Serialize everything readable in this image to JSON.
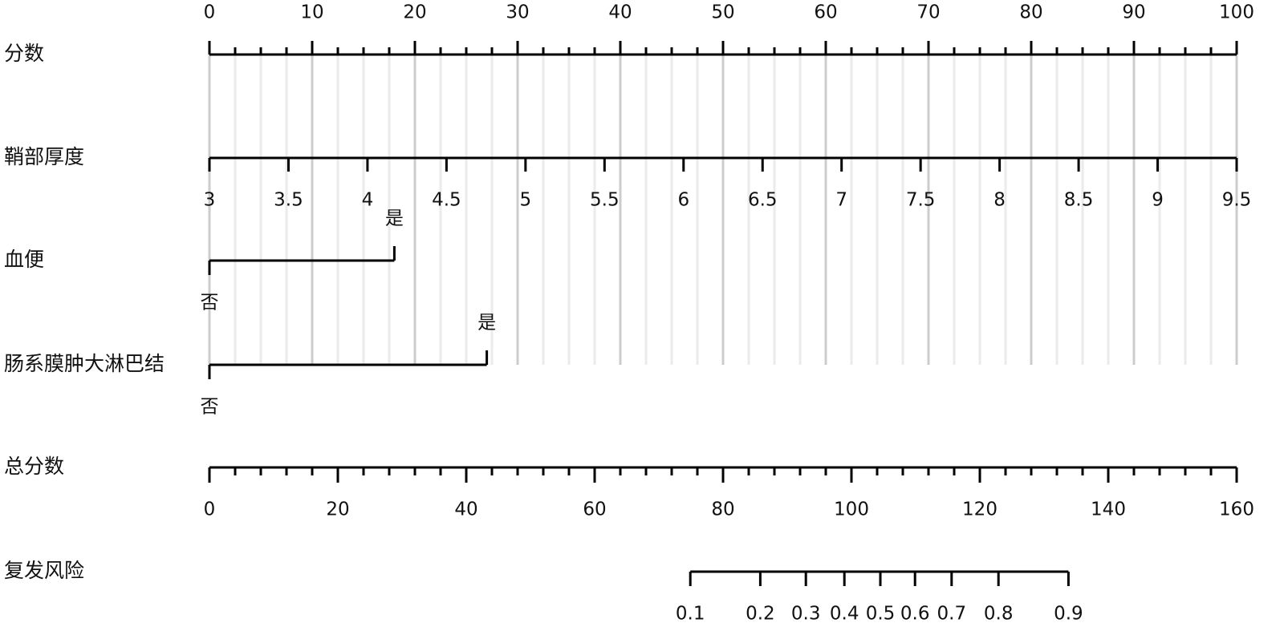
{
  "chart_data": {
    "type": "nomogram",
    "points": {
      "label": "分数",
      "lim": [
        0,
        100
      ],
      "ticks": [
        0,
        10,
        20,
        30,
        40,
        50,
        60,
        70,
        80,
        90,
        100
      ],
      "minor_ticks": [
        2.5,
        5,
        7.5,
        12.5,
        15,
        17.5,
        22.5,
        25,
        27.5,
        32.5,
        35,
        37.5,
        42.5,
        45,
        47.5,
        52.5,
        55,
        57.5,
        62.5,
        65,
        67.5,
        72.5,
        75,
        77.5,
        82.5,
        85,
        87.5,
        92.5,
        95,
        97.5
      ]
    },
    "variables": [
      {
        "label": "鞘部厚度",
        "type": "continuous",
        "range": [
          3,
          9.5
        ],
        "points": [
          0,
          100
        ],
        "ticks": [
          3,
          3.5,
          4,
          4.5,
          5,
          5.5,
          6,
          6.5,
          7,
          7.5,
          8,
          8.5,
          9,
          9.5
        ]
      },
      {
        "label": "血便",
        "type": "categorical",
        "levels": [
          "否",
          "是"
        ],
        "points": [
          0,
          18
        ]
      },
      {
        "label": "肠系膜肿大淋巴结",
        "type": "categorical",
        "levels": [
          "否",
          "是"
        ],
        "points": [
          0,
          27
        ]
      }
    ],
    "total_points": {
      "label": "总分数",
      "lim": [
        0,
        160
      ],
      "ticks": [
        0,
        20,
        40,
        60,
        80,
        100,
        120,
        140,
        160
      ],
      "minor_ticks": [
        4,
        8,
        12,
        16,
        24,
        28,
        32,
        36,
        44,
        48,
        52,
        56,
        64,
        68,
        72,
        76,
        84,
        88,
        92,
        96,
        104,
        108,
        112,
        116,
        124,
        128,
        132,
        136,
        144,
        148,
        152,
        156
      ]
    },
    "risk": {
      "label": "复发风险",
      "ticks": [
        0.1,
        0.2,
        0.3,
        0.4,
        0.5,
        0.6,
        0.7,
        0.8,
        0.9
      ],
      "total_points": [
        74.9,
        85.8,
        92.9,
        98.9,
        104.5,
        109.9,
        115.6,
        122.9,
        133.8
      ]
    },
    "grid": true
  }
}
